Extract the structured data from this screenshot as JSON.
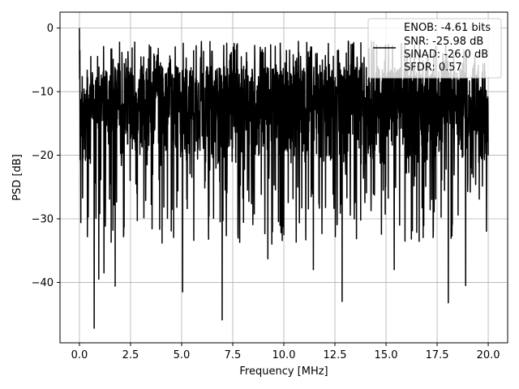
{
  "chart_data": {
    "type": "line",
    "xlabel": "Frequency [MHz]",
    "ylabel": "PSD [dB]",
    "xlim": [
      -0.95,
      20.95
    ],
    "ylim": [
      -49.5,
      2.5
    ],
    "x_ticks": [
      0.0,
      2.5,
      5.0,
      7.5,
      10.0,
      12.5,
      15.0,
      17.5,
      20.0
    ],
    "x_tick_labels": [
      "0.0",
      "2.5",
      "5.0",
      "7.5",
      "10.0",
      "12.5",
      "15.0",
      "17.5",
      "20.0"
    ],
    "y_ticks": [
      0,
      -10,
      -20,
      -30,
      -40
    ],
    "y_tick_labels": [
      "0",
      "−10",
      "−20",
      "−30",
      "−40"
    ],
    "grid": true,
    "legend_position": "top-right",
    "line_color": "#000000",
    "legend": {
      "lines": [
        "ENOB: -4.61 bits",
        "SNR: -25.98 dB",
        "SINAD: -26.0 dB",
        "SFDR: 0.57"
      ]
    },
    "series": [
      {
        "x_start": 0.0,
        "x_end": 20.0,
        "points": 2049,
        "peak": [
          0.0,
          0.0
        ],
        "typical_upper_envelope_db": -6,
        "typical_lower_envelope_db": -22,
        "notable_minima": [
          [
            0.72,
            -47.2
          ],
          [
            0.95,
            -39.5
          ],
          [
            1.2,
            -38.5
          ],
          [
            1.75,
            -40.6
          ],
          [
            5.05,
            -41.5
          ],
          [
            6.98,
            -45.9
          ],
          [
            9.22,
            -36.3
          ],
          [
            11.45,
            -38.0
          ],
          [
            12.85,
            -43.0
          ],
          [
            15.4,
            -38.0
          ],
          [
            18.05,
            -43.2
          ],
          [
            18.9,
            -40.5
          ]
        ]
      }
    ]
  }
}
